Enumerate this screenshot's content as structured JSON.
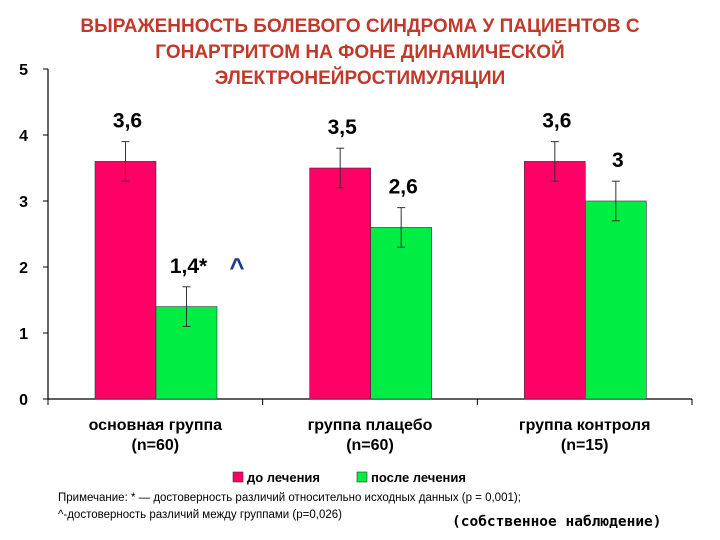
{
  "chart_data": {
    "type": "bar",
    "title": "ВЫРАЖЕННОСТЬ БОЛЕВОГО СИНДРОМА У ПАЦИЕНТОВ С\nГОНАРТРИТОМ НА ФОНЕ ДИНАМИЧЕСКОЙ\nЭЛЕКТРОНЕЙРОСТИМУЛЯЦИИ",
    "categories": [
      [
        "основная группа",
        "(n=60)"
      ],
      [
        "группа плацебо",
        "(n=60)"
      ],
      [
        "группа контроля",
        "(n=15)"
      ]
    ],
    "series": [
      {
        "name": "до лечения",
        "color": "#ff0066",
        "values": [
          3.6,
          3.5,
          3.6
        ],
        "labels": [
          "3,6",
          "3,5",
          "3,6"
        ],
        "errors": [
          0.3,
          0.3,
          0.3
        ]
      },
      {
        "name": "после лечения",
        "color": "#00ee44",
        "values": [
          1.4,
          2.6,
          3.0
        ],
        "labels": [
          "1,4*",
          "2,6",
          "3"
        ],
        "errors": [
          0.3,
          0.3,
          0.3
        ]
      }
    ],
    "ylim": [
      0,
      5
    ],
    "yticks": [
      0,
      1,
      2,
      3,
      4,
      5
    ],
    "annotations": [
      {
        "text": "^",
        "category_index": 0,
        "color": "#1a3a8a"
      }
    ],
    "legend_position": "bottom",
    "grid": false
  },
  "note": "Примечание: * — достоверность различий относительно исходных данных (р = 0,001);\n ^-достоверность различий между группами (p=0,026)",
  "source": "(собственное наблюдение)"
}
